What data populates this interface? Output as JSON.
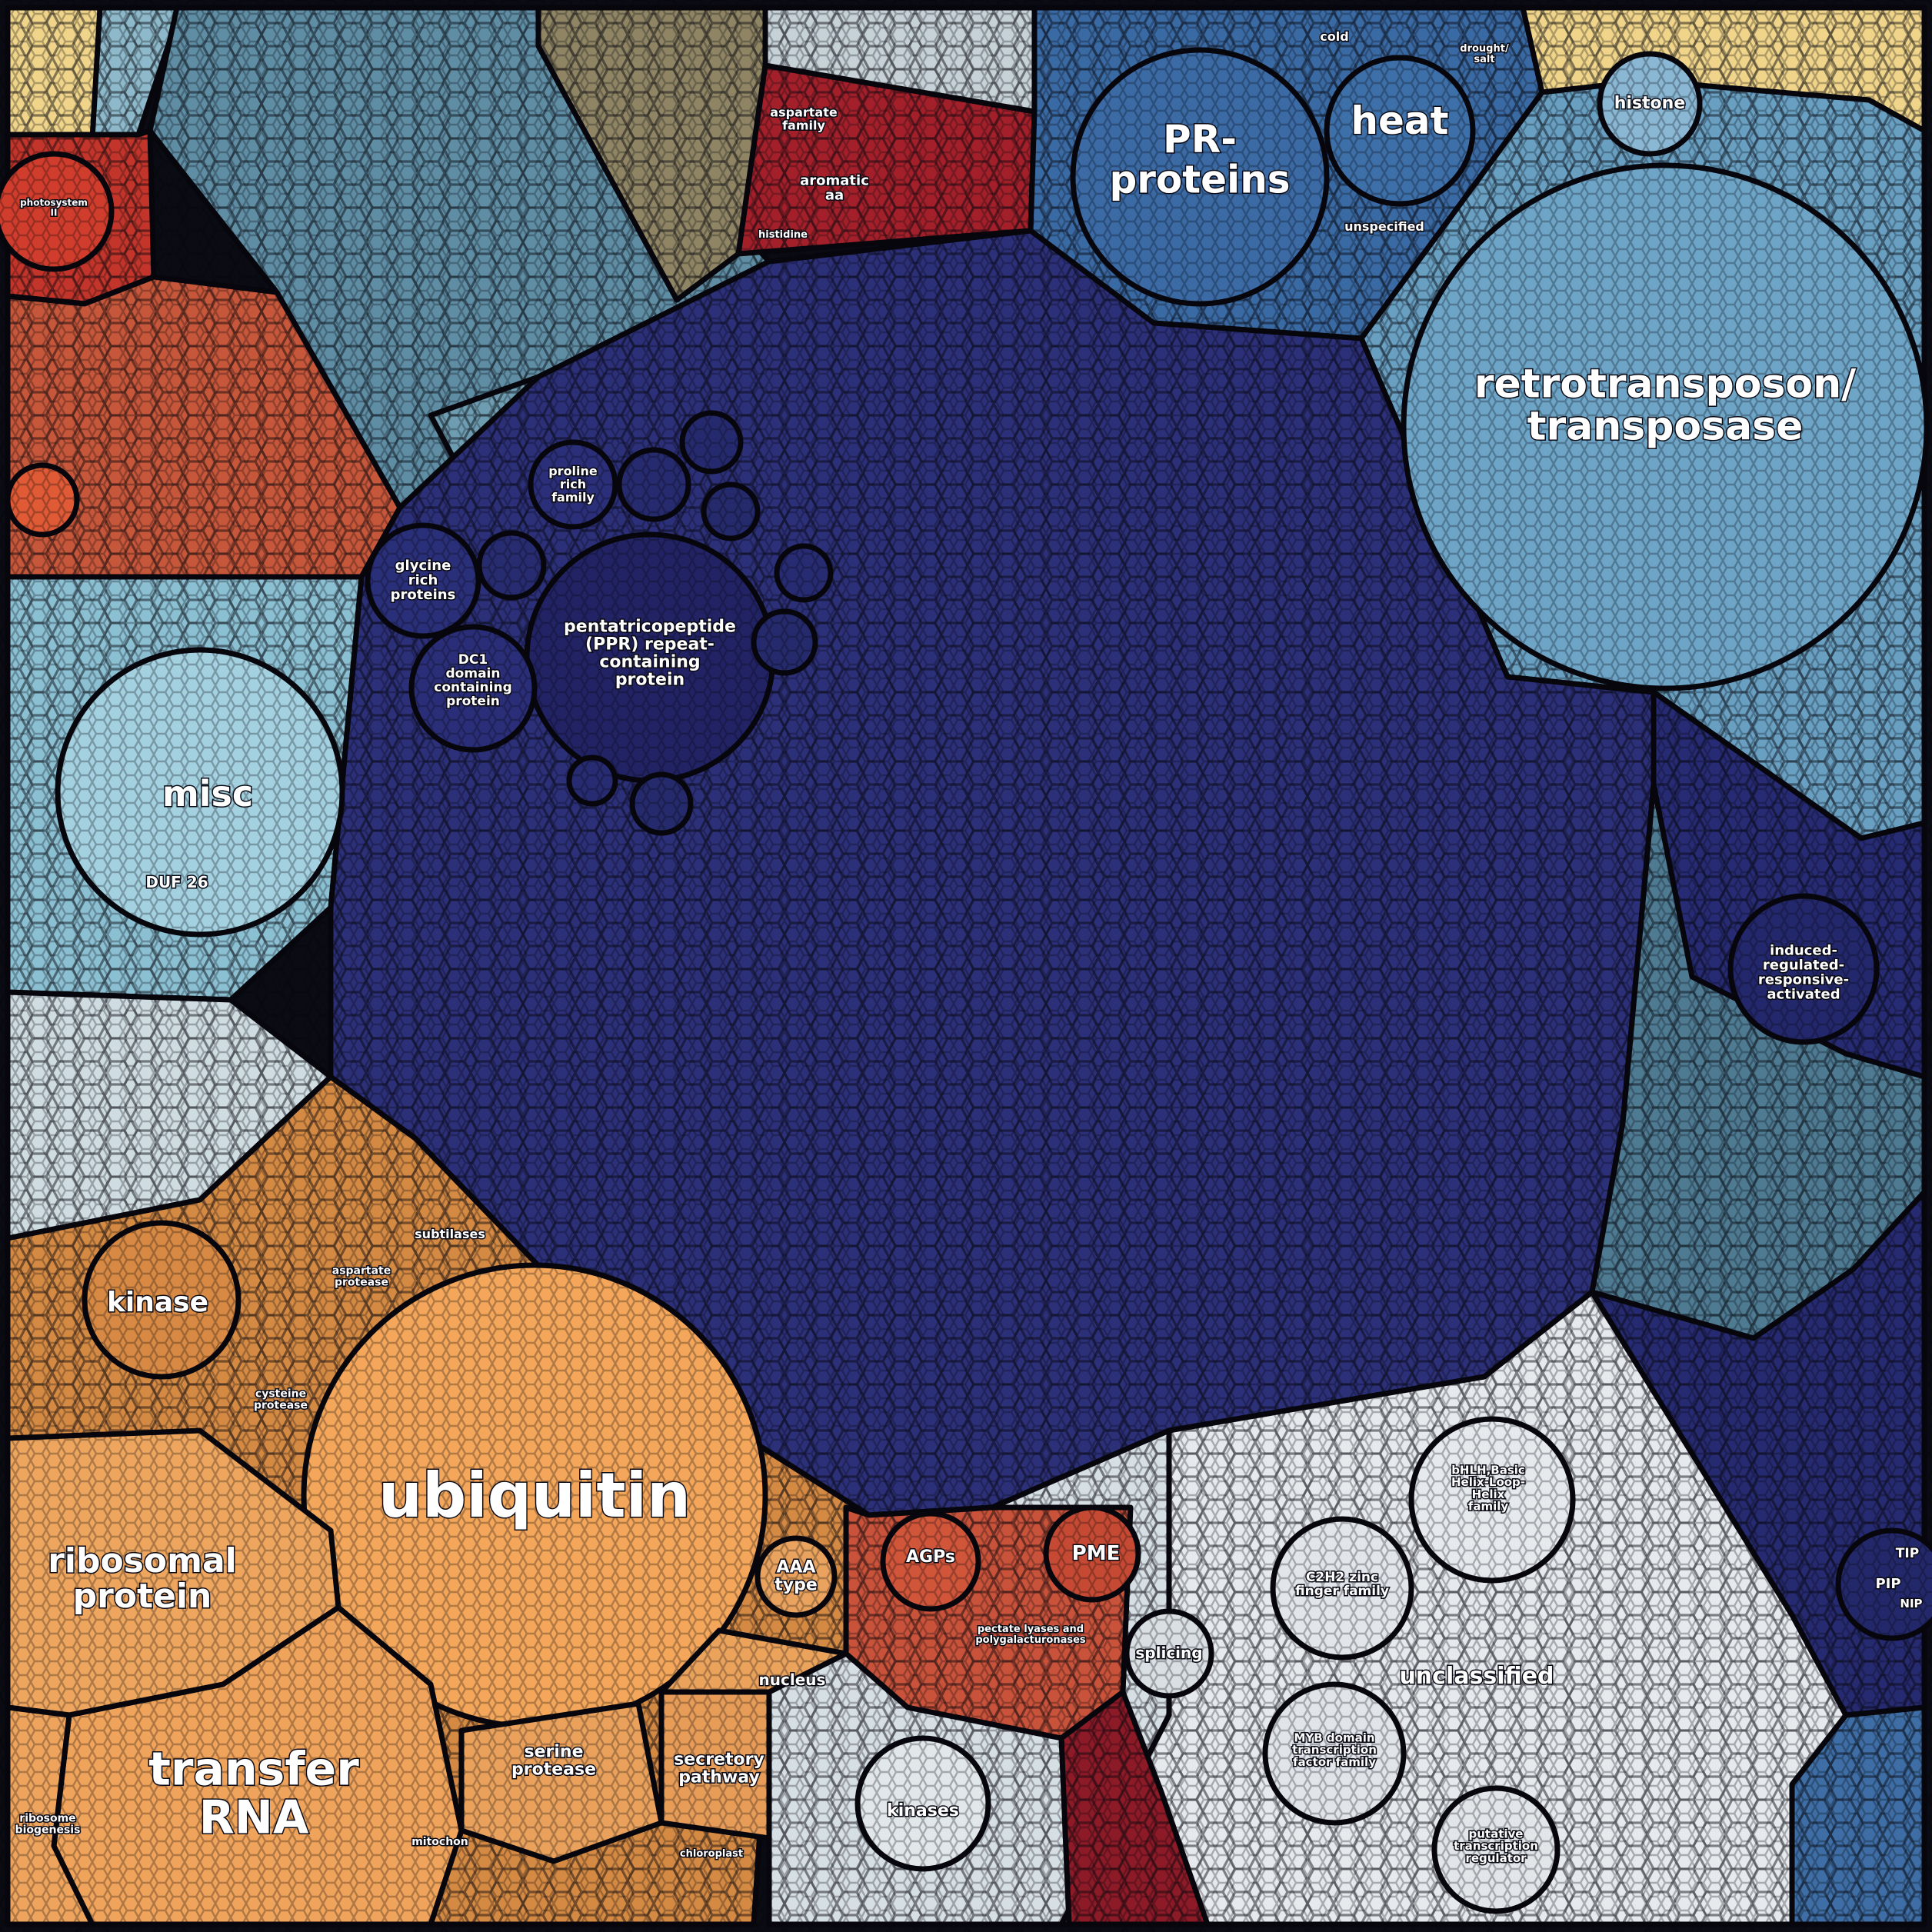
{
  "colors": {
    "border": "#06060c",
    "protein_darkblue": "#2b2f77",
    "protein_darkblue2": "#232566",
    "misc_teal": "#6f9cb1",
    "misc_lightblue": "#9ccadb",
    "stress_blue": "#3a6aa3",
    "transposon_lightblue": "#6fa6c8",
    "amino_red": "#a3202a",
    "photosynth_red": "#c73a2a",
    "terra": "#c4553a",
    "signal_gray": "#d6dde2",
    "rna_white": "#e8ecef",
    "orange": "#d9893f",
    "orange_light": "#f1a65a",
    "tan_yellow": "#f0d890"
  },
  "regions": [
    {
      "name": "pentatricopeptide-ppr-region",
      "label": "pentatricopeptide\n(PPR) repeat-\ncontaining\nprotein",
      "size": 22,
      "color": "#222365"
    },
    {
      "name": "ubiquitin-region",
      "label": "ubiquitin",
      "size": 80,
      "color": "#f4a65a"
    },
    {
      "name": "retrotransposon-region",
      "label": "retrotransposon/\ntransposase",
      "size": 52,
      "color": "#6ea5c7"
    },
    {
      "name": "pr-proteins-region",
      "label": "PR-\nproteins",
      "size": 50,
      "color": "#3b6aa5"
    },
    {
      "name": "heat-region",
      "label": "heat",
      "size": 50,
      "color": "#3d6fa8"
    },
    {
      "name": "misc-region",
      "label": "misc",
      "size": 46,
      "color": "#9ccadb"
    },
    {
      "name": "ribosomal-protein-region",
      "label": "ribosomal\nprotein",
      "size": 44,
      "color": "#eea55e"
    },
    {
      "name": "transfer-rna-region",
      "label": "transfer\nRNA",
      "size": 60,
      "color": "#f0a35a"
    },
    {
      "name": "kinase-region",
      "label": "kinase",
      "size": 36,
      "color": "#d88a44"
    },
    {
      "name": "unclassified-region",
      "label": "unclassified",
      "size": 30,
      "color": "#e4e8eb"
    },
    {
      "name": "induced-regulated-region",
      "label": "induced-\nregulated-\nresponsive-\nactivated",
      "size": 18,
      "color": "#262a78"
    },
    {
      "name": "glycine-rich-region",
      "label": "glycine\nrich\nproteins",
      "size": 18,
      "color": "#2a2f7a"
    },
    {
      "name": "dc1-domain-region",
      "label": "DC1\ndomain\ncontaining\nprotein",
      "size": 17,
      "color": "#2a2e78"
    },
    {
      "name": "proline-rich-region",
      "label": "proline\nrich\nfamily",
      "size": 16,
      "color": "#2b2f7a"
    },
    {
      "name": "histone-region",
      "label": "histone",
      "size": 22,
      "color": "#8ab8d4"
    },
    {
      "name": "agps-region",
      "label": "AGPs",
      "size": 22,
      "color": "#d05539"
    },
    {
      "name": "pme-region",
      "label": "PME",
      "size": 26,
      "color": "#c64a33"
    },
    {
      "name": "pectate-lyases-region",
      "label": "pectate lyases and\npolygalacturonases",
      "size": 13,
      "color": "#c4553a"
    },
    {
      "name": "nucleus-region",
      "label": "nucleus",
      "size": 20,
      "color": "#eba35c"
    },
    {
      "name": "serine-protease-region",
      "label": "serine\nprotease",
      "size": 22,
      "color": "#e9a15c"
    },
    {
      "name": "secretory-pathway-region",
      "label": "secretory\npathway",
      "size": 22,
      "color": "#e79c58"
    },
    {
      "name": "aaa-type-region",
      "label": "AAA\ntype",
      "size": 22,
      "color": "#eaa35e"
    },
    {
      "name": "subtilases-region",
      "label": "subtilases",
      "size": 16,
      "color": "#c27c40"
    },
    {
      "name": "aspartate-protease-region",
      "label": "aspartate\nprotease",
      "size": 14,
      "color": "#c78143"
    },
    {
      "name": "cysteine-protease-region",
      "label": "cysteine\nprotease",
      "size": 14,
      "color": "#c98243"
    },
    {
      "name": "aspartate-family-region",
      "label": "aspartate\nfamily",
      "size": 16,
      "color": "#9c1c28"
    },
    {
      "name": "aromatic-aa-region",
      "label": "aromatic\naa",
      "size": 18,
      "color": "#a12029"
    },
    {
      "name": "histidine-region",
      "label": "histidine",
      "size": 13,
      "color": "#961b27"
    },
    {
      "name": "photosystem-ii-region",
      "label": "photosystem\nII",
      "size": 12,
      "color": "#c6352a"
    },
    {
      "name": "unspecified-region",
      "label": "unspecified",
      "size": 16,
      "color": "#3c6ca6"
    },
    {
      "name": "cold-region",
      "label": "cold",
      "size": 16,
      "color": "#4171a9"
    },
    {
      "name": "drought-salt-region",
      "label": "drought/\nsalt",
      "size": 13,
      "color": "#4473aa"
    },
    {
      "name": "bhlh-region",
      "label": "bHLH,Basic\nHelix-Loop-\nHelix\nfamily",
      "size": 15,
      "color": "#e6eaed"
    },
    {
      "name": "c2h2-region",
      "label": "C2H2 zinc\nfinger family",
      "size": 17,
      "color": "#e2e6ea"
    },
    {
      "name": "myb-region",
      "label": "MYB domain\ntranscription\nfactor family",
      "size": 15,
      "color": "#e1e5e9"
    },
    {
      "name": "splicing-region",
      "label": "splicing",
      "size": 20,
      "color": "#d9dfe3"
    },
    {
      "name": "kinases-region",
      "label": "kinases",
      "size": 22,
      "color": "#e2e7ea"
    },
    {
      "name": "duf-26-region",
      "label": "DUF 26",
      "size": 20,
      "color": "#a6d0de"
    },
    {
      "name": "pip-region",
      "label": "PIP",
      "size": 18,
      "color": "#23286a"
    },
    {
      "name": "tip-region",
      "label": "TIP",
      "size": 17,
      "color": "#23286a"
    },
    {
      "name": "nip-region",
      "label": "NIP",
      "size": 15,
      "color": "#23286a"
    },
    {
      "name": "histone-small-region",
      "label": "ribosome\nbiogenesis",
      "size": 14,
      "color": "#eea45c"
    },
    {
      "name": "mitochon-region",
      "label": "mitochon",
      "size": 14,
      "color": "#e69b55"
    },
    {
      "name": "chloroplast-region",
      "label": "chloroplast",
      "size": 13,
      "color": "#e79c57"
    },
    {
      "name": "putative-region",
      "label": "putative\ntranscription\nregulator",
      "size": 15,
      "color": "#e2e6e9"
    }
  ]
}
